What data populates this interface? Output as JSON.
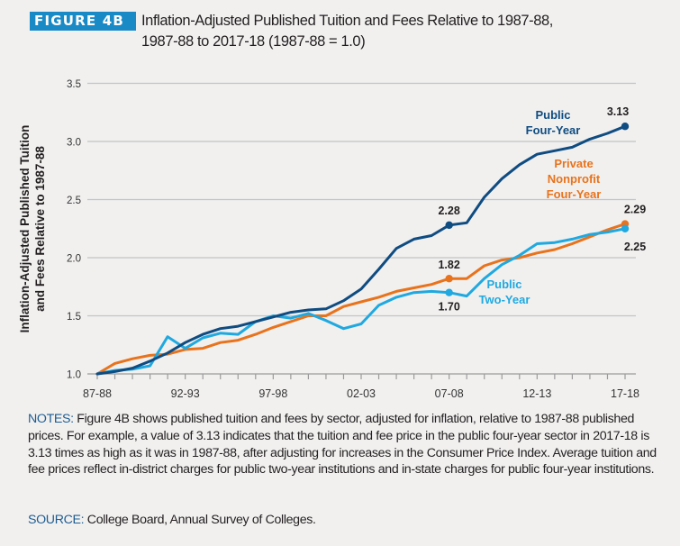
{
  "header": {
    "badge": "FIGURE 4B",
    "title_line1": "Inflation-Adjusted Published Tuition and Fees Relative to 1987-88,",
    "title_line2": "1987-88 to 2017-18 (1987-88 = 1.0)"
  },
  "colors": {
    "badge": "#1a8ac6",
    "public_four_year": "#0f4c81",
    "private_nonprofit": "#e8731c",
    "public_two_year": "#1fa9e0",
    "notes_lead": "#1d5c91"
  },
  "chart_data": {
    "type": "line",
    "title": "Inflation-Adjusted Published Tuition and Fees Relative to 1987-88, 1987-88 to 2017-18 (1987-88 = 1.0)",
    "xlabel": "",
    "ylabel_line1": "Inflation-Adjusted Published Tuition",
    "ylabel_line2": "and Fees Relative to 1987-88",
    "ylabel": "Inflation-Adjusted Published Tuition and Fees Relative to 1987-88",
    "ylim": [
      1.0,
      3.5
    ],
    "yticks": [
      "1.0",
      "1.5",
      "2.0",
      "2.5",
      "3.0",
      "3.5"
    ],
    "grid": true,
    "legend": "inline labels",
    "x": [
      "87-88",
      "88-89",
      "89-90",
      "90-91",
      "91-92",
      "92-93",
      "93-94",
      "94-95",
      "95-96",
      "96-97",
      "97-98",
      "98-99",
      "99-00",
      "00-01",
      "01-02",
      "02-03",
      "03-04",
      "04-05",
      "05-06",
      "06-07",
      "07-08",
      "08-09",
      "09-10",
      "10-11",
      "11-12",
      "12-13",
      "13-14",
      "14-15",
      "15-16",
      "16-17",
      "17-18"
    ],
    "xtick_labels": [
      {
        "index": 0,
        "label": "87-88"
      },
      {
        "index": 5,
        "label": "92-93"
      },
      {
        "index": 10,
        "label": "97-98"
      },
      {
        "index": 15,
        "label": "02-03"
      },
      {
        "index": 20,
        "label": "07-08"
      },
      {
        "index": 25,
        "label": "12-13"
      },
      {
        "index": 30,
        "label": "17-18"
      }
    ],
    "series": [
      {
        "name": "Public Four-Year",
        "label_lines": [
          "Public",
          "Four-Year"
        ],
        "color": "#0f4c81",
        "values": [
          1.0,
          1.02,
          1.05,
          1.11,
          1.18,
          1.27,
          1.34,
          1.39,
          1.41,
          1.45,
          1.49,
          1.53,
          1.55,
          1.56,
          1.63,
          1.73,
          1.9,
          2.08,
          2.16,
          2.19,
          2.28,
          2.3,
          2.52,
          2.68,
          2.8,
          2.89,
          2.92,
          2.95,
          3.02,
          3.07,
          3.13
        ],
        "annotations": [
          {
            "index": 20,
            "label": "2.28"
          },
          {
            "index": 30,
            "label": "3.13"
          }
        ]
      },
      {
        "name": "Private Nonprofit Four-Year",
        "label_lines": [
          "Private",
          "Nonprofit",
          "Four-Year"
        ],
        "color": "#e8731c",
        "values": [
          1.0,
          1.09,
          1.13,
          1.16,
          1.17,
          1.21,
          1.22,
          1.27,
          1.29,
          1.34,
          1.4,
          1.45,
          1.5,
          1.5,
          1.58,
          1.62,
          1.66,
          1.71,
          1.74,
          1.77,
          1.82,
          1.82,
          1.93,
          1.98,
          2.0,
          2.04,
          2.07,
          2.12,
          2.18,
          2.24,
          2.29
        ],
        "annotations": [
          {
            "index": 20,
            "label": "1.82"
          },
          {
            "index": 30,
            "label": "2.29"
          }
        ]
      },
      {
        "name": "Public Two-Year",
        "label_lines": [
          "Public",
          "Two-Year"
        ],
        "color": "#1fa9e0",
        "values": [
          1.0,
          1.03,
          1.04,
          1.07,
          1.32,
          1.22,
          1.31,
          1.35,
          1.34,
          1.45,
          1.5,
          1.48,
          1.52,
          1.46,
          1.39,
          1.43,
          1.59,
          1.66,
          1.7,
          1.71,
          1.7,
          1.67,
          1.82,
          1.94,
          2.02,
          2.12,
          2.13,
          2.16,
          2.2,
          2.22,
          2.25
        ],
        "annotations": [
          {
            "index": 20,
            "label": "1.70"
          },
          {
            "index": 30,
            "label": "2.25"
          }
        ]
      }
    ]
  },
  "notes": {
    "lead": "NOTES:",
    "text": " Figure 4B shows published tuition and fees by sector, adjusted for inflation, relative to 1987-88 published prices. For example, a value of 3.13 indicates that the tuition and fee price in the public four-year sector in 2017-18 is 3.13 times as high as it was in 1987-88, after adjusting for increases in the Consumer Price Index. Average tuition and fee prices reflect in-district charges for public two-year institutions and in-state charges for public four-year institutions."
  },
  "source": {
    "lead": "SOURCE:",
    "text": " College Board, Annual Survey of Colleges."
  }
}
